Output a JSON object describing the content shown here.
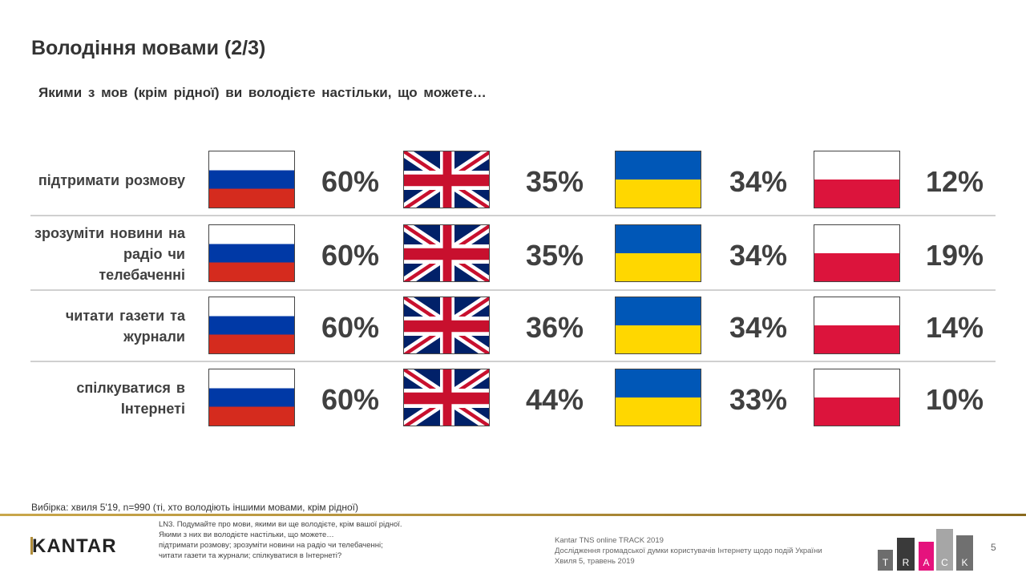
{
  "title": "Володіння мовами (2/3)",
  "subtitle": "Якими з мов (крім рідної) ви володієте настільки, що можете…",
  "languages": [
    {
      "name": "russian",
      "flag": "russia-flag-icon"
    },
    {
      "name": "english",
      "flag": "uk-flag-icon"
    },
    {
      "name": "ukrainian",
      "flag": "ukraine-flag-icon"
    },
    {
      "name": "polish",
      "flag": "poland-flag-icon"
    }
  ],
  "rows": [
    {
      "label": "підтримати розмову",
      "values": [
        "60%",
        "35%",
        "34%",
        "12%"
      ]
    },
    {
      "label": "зрозуміти новини на радіо чи телебаченні",
      "values": [
        "60%",
        "35%",
        "34%",
        "19%"
      ]
    },
    {
      "label": "читати газети та журнали",
      "values": [
        "60%",
        "36%",
        "34%",
        "14%"
      ]
    },
    {
      "label": "спілкуватися в Інтернеті",
      "values": [
        "60%",
        "44%",
        "33%",
        "10%"
      ]
    }
  ],
  "sample_note": "Вибірка: хвиля 5'19, n=990 (ті, хто володіють іншими мовами, крім рідної)",
  "footer": {
    "logo": "KANTAR",
    "question": [
      "LN3. Подумайте про мови, якими ви ще володієте, крім вашої рідної.",
      "Якими з них ви володієте настільки, що можете…",
      "підтримати розмову; зрозуміти новини на радіо чи телебаченні;",
      "читати газети та журнали; спілкуватися в Інтернеті?"
    ],
    "info": [
      "Kantar TNS online TRACK 2019",
      "Дослідження громадської думки користувачів Інтернету щодо подій України",
      "Хвиля 5, травень 2019"
    ],
    "track_letters": [
      "T",
      "R",
      "A",
      "C",
      "K"
    ],
    "track_colors": [
      "#6d6d6d",
      "#3a3a3a",
      "#e5127d",
      "#a6a6a6",
      "#707070"
    ],
    "page_number": "5"
  }
}
